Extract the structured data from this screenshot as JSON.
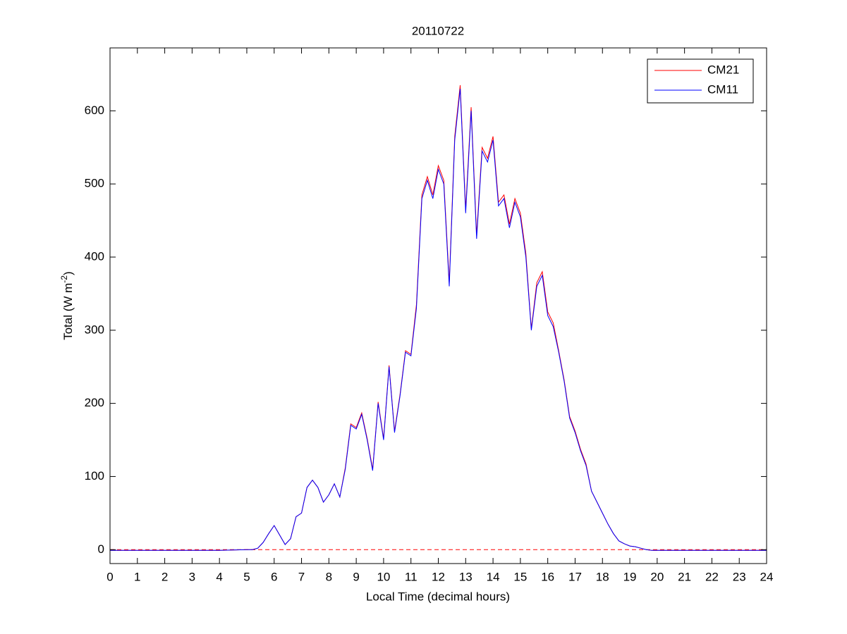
{
  "chart_data": {
    "type": "line",
    "title": "20110722",
    "xlabel": "Local Time (decimal hours)",
    "ylabel": {
      "text": "Total (W m",
      "superscript": "-2",
      "suffix": ")"
    },
    "x": [
      0,
      1,
      2,
      3,
      4,
      5,
      5.2,
      5.4,
      5.6,
      5.8,
      6,
      6.2,
      6.4,
      6.6,
      6.8,
      7,
      7.2,
      7.4,
      7.6,
      7.8,
      8,
      8.2,
      8.4,
      8.6,
      8.8,
      9,
      9.2,
      9.4,
      9.6,
      9.8,
      10,
      10.2,
      10.4,
      10.6,
      10.8,
      11,
      11.2,
      11.4,
      11.6,
      11.8,
      12,
      12.2,
      12.4,
      12.6,
      12.8,
      13,
      13.2,
      13.4,
      13.6,
      13.8,
      14,
      14.2,
      14.4,
      14.6,
      14.8,
      15,
      15.2,
      15.4,
      15.6,
      15.8,
      16,
      16.2,
      16.4,
      16.6,
      16.8,
      17,
      17.2,
      17.4,
      17.6,
      17.8,
      18,
      18.2,
      18.4,
      18.6,
      18.8,
      19,
      19.2,
      19.4,
      19.6,
      19.8,
      20,
      21,
      22,
      23,
      24
    ],
    "series": [
      {
        "name": "CM21",
        "color": "#ff0000",
        "values": [
          -1,
          -1,
          -1,
          -1,
          -1,
          0,
          0,
          2,
          10,
          22,
          33,
          20,
          7,
          15,
          45,
          50,
          85,
          95,
          85,
          65,
          75,
          90,
          72,
          112,
          172,
          167,
          187,
          152,
          110,
          202,
          152,
          252,
          162,
          212,
          272,
          267,
          335,
          485,
          510,
          485,
          525,
          505,
          365,
          565,
          635,
          465,
          605,
          430,
          550,
          535,
          565,
          475,
          485,
          445,
          480,
          460,
          405,
          302,
          365,
          380,
          325,
          310,
          272,
          232,
          182,
          162,
          137,
          117,
          80,
          65,
          50,
          35,
          22,
          12,
          8,
          5,
          4,
          2,
          0,
          -1,
          -1,
          -1,
          -1,
          -1,
          -1
        ]
      },
      {
        "name": "CM11",
        "color": "#0000ff",
        "values": [
          -1,
          -1,
          -1,
          -1,
          -1,
          0,
          0,
          2,
          10,
          22,
          33,
          20,
          7,
          15,
          45,
          50,
          85,
          95,
          85,
          65,
          75,
          90,
          72,
          110,
          170,
          165,
          185,
          150,
          108,
          200,
          150,
          250,
          160,
          210,
          270,
          265,
          330,
          480,
          505,
          480,
          520,
          500,
          360,
          560,
          630,
          460,
          600,
          425,
          545,
          530,
          560,
          470,
          480,
          440,
          475,
          455,
          400,
          300,
          360,
          375,
          320,
          305,
          270,
          230,
          180,
          160,
          135,
          115,
          80,
          65,
          50,
          35,
          22,
          12,
          8,
          5,
          4,
          2,
          0,
          -1,
          -1,
          -1,
          -1,
          -1,
          -1
        ]
      }
    ],
    "hline": 0,
    "hline_color": "#ff0000",
    "xlim": [
      0,
      24
    ],
    "xticks": [
      0,
      1,
      2,
      3,
      4,
      5,
      6,
      7,
      8,
      9,
      10,
      11,
      12,
      13,
      14,
      15,
      16,
      17,
      18,
      19,
      20,
      21,
      22,
      23,
      24
    ],
    "ylim": [
      -19,
      686
    ],
    "yticks": [
      0,
      100,
      200,
      300,
      400,
      500,
      600
    ],
    "legend": "upper right"
  }
}
